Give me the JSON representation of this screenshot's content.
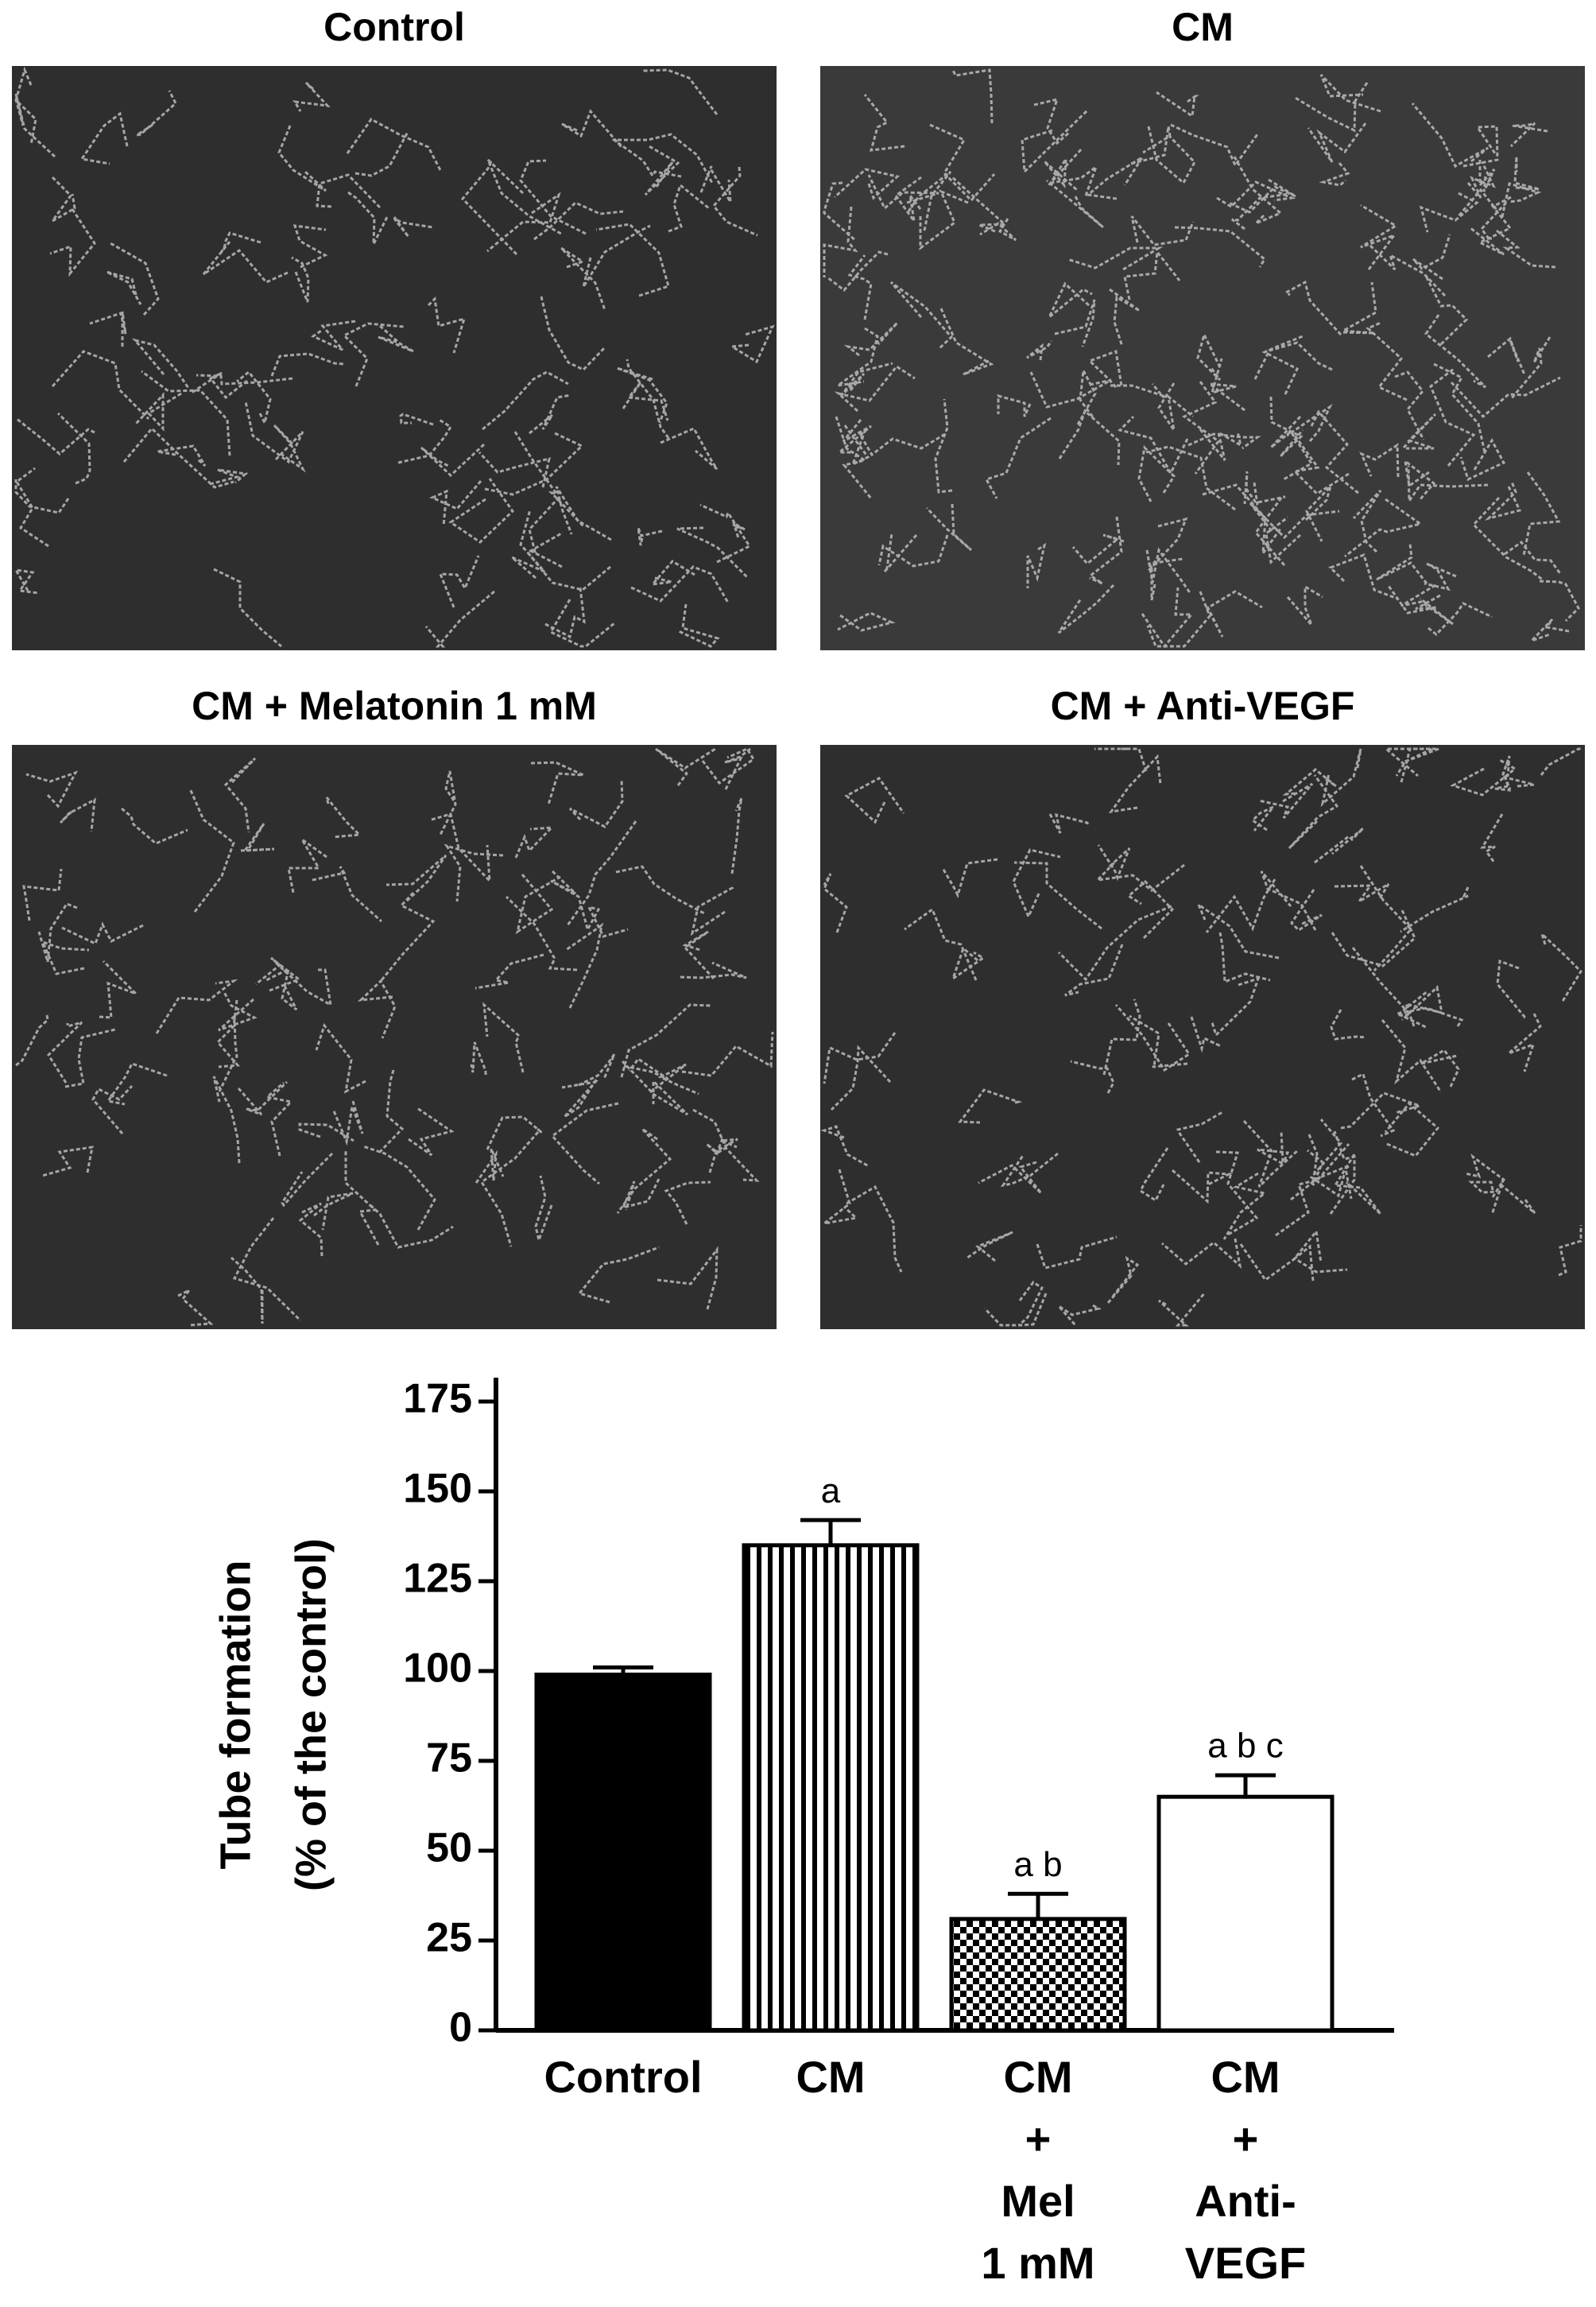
{
  "panels": [
    {
      "title": "Control"
    },
    {
      "title": "CM"
    },
    {
      "title": "CM + Melatonin 1 mM"
    },
    {
      "title": "CM + Anti-VEGF"
    }
  ],
  "chart_data": {
    "type": "bar",
    "ylabel": [
      "Tube formation",
      "(% of the control)"
    ],
    "categories": [
      "Control",
      "CM",
      "CM\n+\nMel\n1 mM",
      "CM\n+\nAnti-\nVEGF"
    ],
    "values": [
      99,
      135,
      31,
      65
    ],
    "errors": [
      2,
      7,
      7,
      6
    ],
    "annotations": [
      null,
      "a",
      "a b",
      "a b c"
    ],
    "patterns": [
      "solid",
      "vertical-stripes",
      "checker",
      "none"
    ],
    "color": "#000000",
    "ylim": [
      0,
      175
    ],
    "yticks": [
      0,
      25,
      50,
      75,
      100,
      125,
      150,
      175
    ]
  }
}
